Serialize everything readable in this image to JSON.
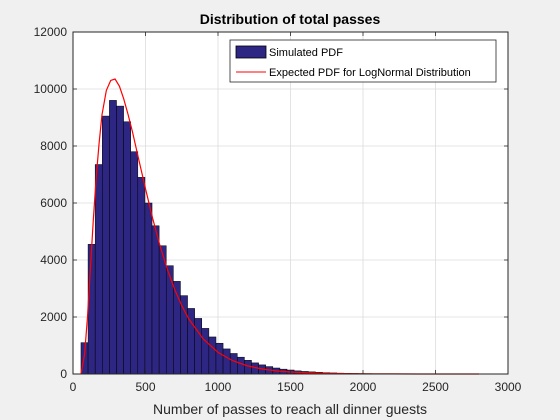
{
  "chart_data": {
    "type": "bar",
    "title": "Distribution of total passes",
    "xlabel": "Number of passes to reach all dinner guests",
    "ylabel": "",
    "xlim": [
      0,
      3000
    ],
    "ylim": [
      0,
      12000
    ],
    "xticks": [
      0,
      500,
      1000,
      1500,
      2000,
      2500,
      3000
    ],
    "yticks": [
      0,
      2000,
      4000,
      6000,
      8000,
      10000,
      12000
    ],
    "grid": true,
    "legend_position": "top-right",
    "bin_width": 49,
    "bin_start": 55,
    "series": [
      {
        "name": "Simulated PDF",
        "kind": "histogram",
        "color": "#2e2683",
        "edge_color": "#000000",
        "values": [
          1100,
          4550,
          7350,
          9050,
          9600,
          9400,
          8850,
          7800,
          6900,
          6000,
          5200,
          4500,
          3800,
          3250,
          2750,
          2300,
          1950,
          1600,
          1300,
          1080,
          880,
          720,
          590,
          480,
          390,
          320,
          260,
          210,
          170,
          140,
          110,
          90,
          75,
          60,
          48,
          38,
          30,
          24,
          19,
          15,
          12,
          9,
          7,
          5,
          4,
          3,
          2,
          2,
          1,
          1,
          1,
          1,
          1,
          1,
          1,
          1
        ]
      },
      {
        "name": "Expected PDF for LogNormal Distribution",
        "kind": "line",
        "color": "#ff0000",
        "x": [
          55,
          80,
          100,
          120,
          140,
          160,
          180,
          200,
          230,
          260,
          290,
          320,
          350,
          380,
          410,
          450,
          500,
          550,
          600,
          650,
          700,
          750,
          800,
          900,
          1000,
          1100,
          1200,
          1300,
          1400,
          1500,
          1600,
          1800,
          2000,
          2200,
          2400,
          2600,
          2800
        ],
        "y": [
          0,
          700,
          2000,
          3700,
          5400,
          6900,
          8100,
          9100,
          9950,
          10300,
          10350,
          10100,
          9650,
          9100,
          8500,
          7600,
          6500,
          5450,
          4500,
          3680,
          2980,
          2400,
          1920,
          1220,
          760,
          470,
          290,
          180,
          110,
          70,
          45,
          18,
          7,
          3,
          1,
          0,
          0
        ]
      }
    ]
  }
}
